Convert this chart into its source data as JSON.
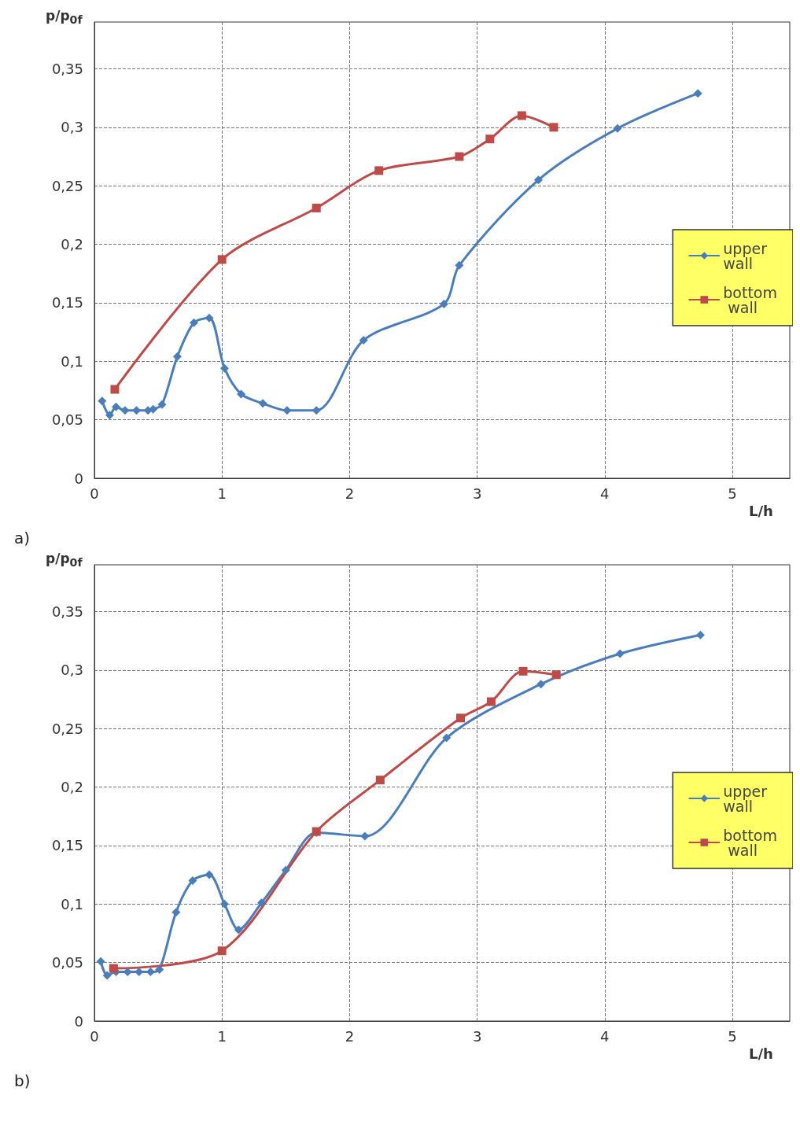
{
  "chart_data": [
    {
      "type": "line",
      "xlabel": "L/h",
      "ylabel": "p/p$_{0f}$",
      "annotations": [
        "a)"
      ],
      "xlim": [
        0,
        5.45
      ],
      "ylim": [
        0,
        0.39
      ],
      "xticks": [
        0,
        1,
        2,
        3,
        4,
        5
      ],
      "yticks": [
        0,
        {
          "value": 0.05,
          "label": "0,05"
        },
        {
          "value": 0.1,
          "label": "0,1"
        },
        {
          "value": 0.15,
          "label": "0,15"
        },
        {
          "value": 0.2,
          "label": "0,2"
        },
        {
          "value": 0.25,
          "label": "0,25"
        },
        {
          "value": 0.3,
          "label": "0,3"
        },
        {
          "value": 0.35,
          "label": "0,35"
        }
      ],
      "grid": true,
      "legend": "right",
      "series": [
        {
          "name": "upper wall",
          "color": "#4a7ebb",
          "marker": "diamond",
          "x": [
            0.06,
            0.12,
            0.17,
            0.24,
            0.33,
            0.42,
            0.46,
            0.53,
            0.65,
            0.78,
            0.9,
            1.02,
            1.15,
            1.32,
            1.51,
            1.74,
            2.11,
            2.74,
            2.86,
            3.48,
            4.1,
            4.73
          ],
          "values": [
            0.066,
            0.054,
            0.061,
            0.058,
            0.058,
            0.058,
            0.059,
            0.063,
            0.104,
            0.133,
            0.137,
            0.094,
            0.072,
            0.064,
            0.058,
            0.058,
            0.118,
            0.149,
            0.182,
            0.255,
            0.299,
            0.329
          ]
        },
        {
          "name": "bottom wall",
          "color": "#be4b48",
          "marker": "square",
          "x": [
            0.16,
            1.0,
            1.74,
            2.23,
            2.86,
            3.1,
            3.35,
            3.6
          ],
          "values": [
            0.076,
            0.187,
            0.231,
            0.263,
            0.275,
            0.29,
            0.31,
            0.3
          ]
        }
      ]
    },
    {
      "type": "line",
      "xlabel": "L/h",
      "ylabel": "p/p$_{0f}$",
      "annotations": [
        "b)"
      ],
      "xlim": [
        0,
        5.45
      ],
      "ylim": [
        0,
        0.39
      ],
      "xticks": [
        0,
        1,
        2,
        3,
        4,
        5
      ],
      "yticks": [
        0,
        {
          "value": 0.05,
          "label": "0,05"
        },
        {
          "value": 0.1,
          "label": "0,1"
        },
        {
          "value": 0.15,
          "label": "0,15"
        },
        {
          "value": 0.2,
          "label": "0,2"
        },
        {
          "value": 0.25,
          "label": "0,25"
        },
        {
          "value": 0.3,
          "label": "0,3"
        },
        {
          "value": 0.35,
          "label": "0,35"
        }
      ],
      "grid": true,
      "legend": "right",
      "series": [
        {
          "name": "upper wall",
          "color": "#4a7ebb",
          "marker": "diamond",
          "x": [
            0.05,
            0.1,
            0.17,
            0.26,
            0.35,
            0.44,
            0.51,
            0.64,
            0.77,
            0.9,
            1.02,
            1.13,
            1.31,
            1.5,
            1.74,
            2.12,
            2.76,
            3.5,
            4.12,
            4.75
          ],
          "values": [
            0.051,
            0.039,
            0.042,
            0.042,
            0.042,
            0.042,
            0.044,
            0.093,
            0.12,
            0.125,
            0.1,
            0.078,
            0.101,
            0.129,
            0.161,
            0.158,
            0.242,
            0.288,
            0.314,
            0.33
          ]
        },
        {
          "name": "bottom wall",
          "color": "#be4b48",
          "marker": "square",
          "x": [
            0.15,
            1.0,
            1.74,
            2.24,
            2.87,
            3.11,
            3.36,
            3.62
          ],
          "values": [
            0.045,
            0.06,
            0.162,
            0.206,
            0.259,
            0.273,
            0.299,
            0.296
          ]
        }
      ]
    }
  ]
}
